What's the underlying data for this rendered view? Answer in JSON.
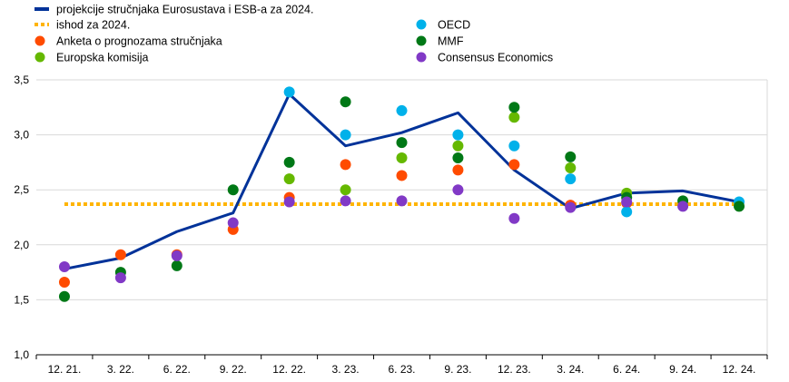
{
  "chart_data": {
    "type": "scatter",
    "categories": [
      "12. 21.",
      "3. 22.",
      "6. 22.",
      "9. 22.",
      "12. 22.",
      "3. 23.",
      "6. 23.",
      "9. 23.",
      "12. 23.",
      "3. 24.",
      "6. 24.",
      "9. 24.",
      "12. 24."
    ],
    "ylim": [
      1.0,
      3.5
    ],
    "yticks": [
      "1,0",
      "1,5",
      "2,0",
      "2,5",
      "3,0",
      "3,5"
    ],
    "ytick_values": [
      1.0,
      1.5,
      2.0,
      2.5,
      3.0,
      3.5
    ],
    "grid": true,
    "legend_position": "top",
    "line_series": [
      {
        "name": "projekcije stručnjaka Eurosustava i ESB-a za 2024.",
        "color": "#003299",
        "values": [
          1.78,
          1.88,
          2.12,
          2.29,
          3.37,
          2.9,
          3.02,
          3.2,
          2.68,
          2.33,
          2.47,
          2.49,
          2.39
        ]
      }
    ],
    "reference_line": {
      "name": "ishod za 2024.",
      "color": "#ffb400",
      "value": 2.37
    },
    "series": [
      {
        "name": "Anketa o prognozama stručnjaka",
        "color": "#ff4b00",
        "values": [
          1.66,
          1.91,
          1.91,
          2.14,
          2.43,
          2.73,
          2.63,
          2.68,
          2.73,
          2.36,
          2.38,
          null,
          null
        ]
      },
      {
        "name": "Europska komisija",
        "color": "#65b800",
        "values": [
          null,
          null,
          null,
          null,
          2.6,
          2.5,
          2.79,
          2.9,
          3.16,
          2.7,
          2.47,
          null,
          null
        ]
      },
      {
        "name": "OECD",
        "color": "#00b1ea",
        "values": [
          null,
          null,
          null,
          null,
          3.39,
          3.0,
          3.22,
          3.0,
          2.9,
          2.6,
          2.3,
          null,
          2.39
        ]
      },
      {
        "name": "MMF",
        "color": "#007816",
        "values": [
          1.53,
          1.75,
          1.81,
          2.5,
          2.75,
          3.3,
          2.93,
          2.79,
          3.25,
          2.8,
          2.43,
          2.4,
          2.35
        ]
      },
      {
        "name": "Consensus Economics",
        "color": "#8139c6",
        "values": [
          1.8,
          1.7,
          1.9,
          2.2,
          2.39,
          2.4,
          2.4,
          2.5,
          2.24,
          2.34,
          2.39,
          2.35,
          null
        ]
      }
    ]
  }
}
